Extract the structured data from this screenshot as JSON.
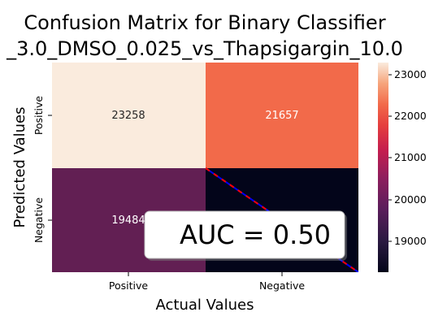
{
  "chart_data": {
    "type": "heatmap",
    "title_lines": [
      "Confusion Matrix for Binary Classifier",
      "_3.0_DMSO_0.025_vs_Thapsigargin_10.0"
    ],
    "xlabel": "Actual Values",
    "ylabel": "Predicted Values",
    "x_categories": [
      "Positive",
      "Negative"
    ],
    "y_categories": [
      "Positive",
      "Negative"
    ],
    "values": [
      [
        23258,
        21657
      ],
      [
        19484,
        18200
      ]
    ],
    "shown_values": [
      "23258",
      "21657",
      "19484",
      ""
    ],
    "colorbar": {
      "min": 18200,
      "max": 23258,
      "ticks": [
        "19000",
        "20000",
        "21000",
        "22000",
        "23000"
      ],
      "colormap": "rocket"
    },
    "annotation": "AUC = 0.50",
    "diagonal_line": {
      "color": "#0000ff",
      "dash_color": "#ff0000",
      "style": "dashed"
    }
  }
}
